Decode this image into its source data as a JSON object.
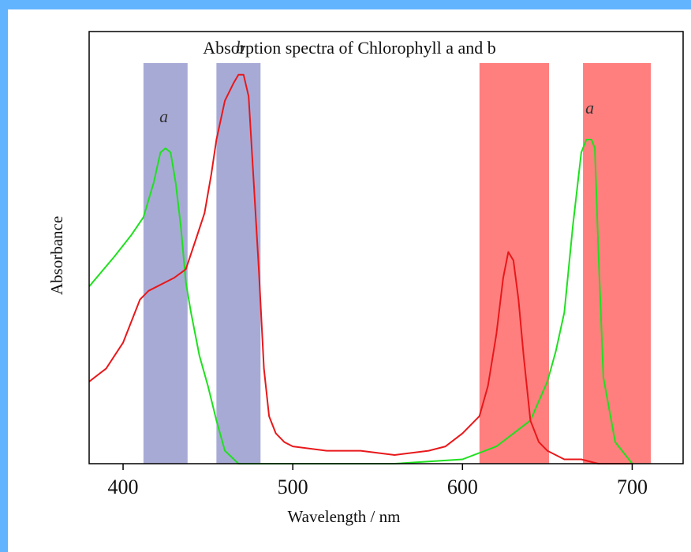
{
  "chart_data": {
    "type": "line",
    "title": "Absorption spectra of Chlorophyll a and b",
    "xlabel": "Wavelength / nm",
    "ylabel": "Absorbance",
    "xlim": [
      380,
      730
    ],
    "ylim": [
      0,
      1.0
    ],
    "x_ticks": [
      400,
      500,
      600,
      700
    ],
    "grid": false,
    "colors": {
      "chlorophyll_a_line": "#1fe01f",
      "chlorophyll_b_line": "#e8181a",
      "blue_band": "#a8aad6",
      "red_band": "#ff7f7f"
    },
    "bands": [
      {
        "color": "blue",
        "from": 412,
        "to": 438
      },
      {
        "color": "blue",
        "from": 455,
        "to": 481
      },
      {
        "color": "red",
        "from": 610,
        "to": 651
      },
      {
        "color": "red",
        "from": 671,
        "to": 711
      }
    ],
    "peak_labels": [
      {
        "text": "a",
        "x": 424,
        "y": 0.79
      },
      {
        "text": "b",
        "x": 469,
        "y": 0.95
      },
      {
        "text": "a",
        "x": 675,
        "y": 0.81
      }
    ],
    "series": [
      {
        "key": "chl_a",
        "x": [
          380,
          395,
          405,
          412,
          418,
          422,
          425,
          428,
          431,
          434,
          437,
          440,
          445,
          450,
          455,
          460,
          468,
          476,
          480,
          560,
          600,
          620,
          640,
          650,
          655,
          660,
          665,
          670,
          673,
          676,
          678,
          680,
          683,
          690,
          700
        ],
        "y": [
          0.41,
          0.48,
          0.53,
          0.57,
          0.65,
          0.72,
          0.73,
          0.72,
          0.65,
          0.55,
          0.42,
          0.35,
          0.25,
          0.18,
          0.1,
          0.03,
          0.0,
          0.0,
          0.0,
          0.0,
          0.01,
          0.04,
          0.1,
          0.19,
          0.26,
          0.35,
          0.55,
          0.72,
          0.75,
          0.75,
          0.73,
          0.5,
          0.2,
          0.05,
          0.0
        ]
      },
      {
        "key": "chl_b",
        "x": [
          380,
          390,
          400,
          410,
          415,
          420,
          430,
          437,
          443,
          448,
          452,
          455,
          460,
          465,
          468,
          471,
          474,
          477,
          480,
          483,
          486,
          490,
          495,
          500,
          520,
          540,
          560,
          580,
          590,
          600,
          610,
          615,
          620,
          624,
          627,
          630,
          633,
          636,
          640,
          645,
          650,
          660,
          670,
          680,
          690,
          700
        ],
        "y": [
          0.19,
          0.22,
          0.28,
          0.38,
          0.4,
          0.41,
          0.43,
          0.45,
          0.52,
          0.58,
          0.67,
          0.75,
          0.84,
          0.88,
          0.9,
          0.9,
          0.85,
          0.65,
          0.45,
          0.22,
          0.11,
          0.07,
          0.05,
          0.04,
          0.03,
          0.03,
          0.02,
          0.03,
          0.04,
          0.07,
          0.11,
          0.18,
          0.3,
          0.43,
          0.49,
          0.47,
          0.38,
          0.25,
          0.1,
          0.05,
          0.03,
          0.01,
          0.01,
          0.0,
          0.0,
          0.0
        ]
      }
    ]
  }
}
